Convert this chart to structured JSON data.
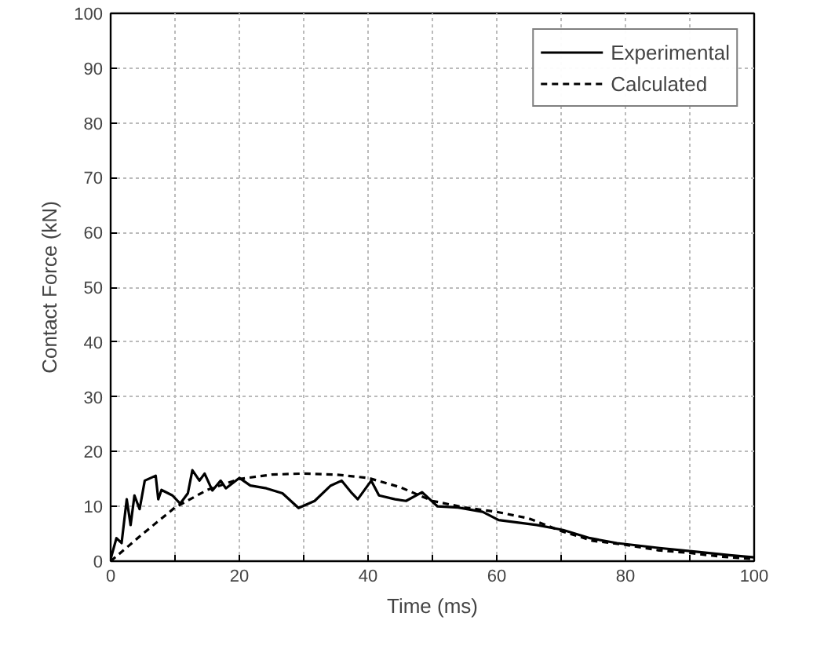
{
  "chart_data": {
    "type": "line",
    "xlabel": "Time (ms)",
    "ylabel": "Contact Force (kN)",
    "xlim": [
      0,
      100
    ],
    "ylim": [
      0,
      100
    ],
    "xticks": [
      0,
      {
        "value": 10,
        "label": null
      },
      20,
      {
        "value": 30,
        "label": null
      },
      40,
      {
        "value": 50,
        "label": null
      },
      60,
      {
        "value": 70,
        "label": null
      },
      80,
      {
        "value": 90,
        "label": null
      },
      100
    ],
    "yticks": [
      0,
      10,
      20,
      30,
      40,
      50,
      60,
      70,
      80,
      90,
      100
    ],
    "grid": true,
    "legend": "top right",
    "series": [
      {
        "name": "Experimental",
        "color": "#000000",
        "line_style": "solid",
        "x": [
          0,
          0.9,
          1.7,
          2.5,
          3.1,
          3.7,
          4.5,
          5.3,
          7,
          7.4,
          7.9,
          9.6,
          10.8,
          12,
          12.7,
          13.8,
          14.6,
          15.8,
          17.1,
          17.9,
          20,
          21.7,
          24.2,
          26.7,
          29.2,
          31.7,
          34.2,
          35.9,
          37.5,
          38.4,
          40.5,
          41.7,
          44.2,
          45.9,
          48.4,
          50.8,
          54,
          57.8,
          60.3,
          66.2,
          70.3,
          74.5,
          78.7,
          85.3,
          91.2,
          96.2,
          100
        ],
        "values": [
          0.4,
          4.2,
          3.3,
          11.3,
          6.6,
          12,
          9.5,
          14.7,
          15.6,
          11.3,
          13,
          12,
          10.5,
          12.4,
          16.6,
          14.7,
          16,
          12.9,
          14.7,
          13.3,
          15.2,
          13.8,
          13.3,
          12.4,
          9.7,
          11,
          13.8,
          14.7,
          12.4,
          11.3,
          14.7,
          12,
          11.3,
          11,
          12.6,
          10,
          9.8,
          9,
          7.5,
          6.6,
          5.7,
          4.2,
          3.3,
          2.4,
          1.7,
          1.1,
          0.7
        ]
      },
      {
        "name": "Calculated",
        "color": "#000000",
        "line_style": "dashed",
        "x": [
          0,
          5,
          10,
          15,
          20,
          25,
          30,
          35,
          40,
          45,
          50,
          55,
          60,
          65,
          70,
          75,
          80,
          85,
          90,
          95,
          100
        ],
        "values": [
          0,
          5,
          9.8,
          13,
          15,
          15.8,
          16,
          15.8,
          15.2,
          13.5,
          11,
          9.8,
          9,
          7.8,
          5.5,
          3.7,
          3,
          2,
          1.5,
          0.8,
          0.4
        ]
      }
    ]
  }
}
